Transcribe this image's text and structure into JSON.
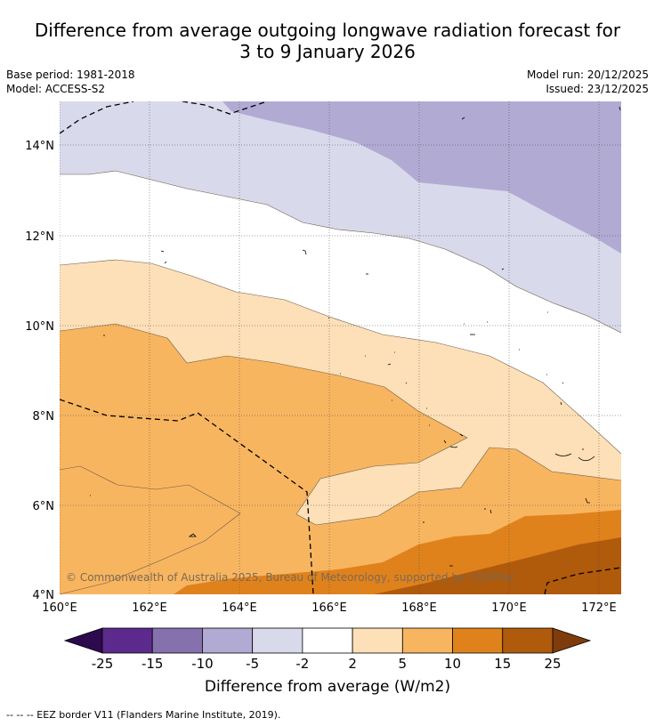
{
  "title_line1": "Difference from average outgoing longwave radiation forecast for",
  "title_line2": "3 to 9 January 2026",
  "meta_left": [
    "Base period: 1981-2018",
    "Model: ACCESS-S2"
  ],
  "meta_right": [
    "Model run: 20/12/2025",
    "Issued: 23/12/2025"
  ],
  "x_ticks": [
    "160°E",
    "162°E",
    "164°E",
    "166°E",
    "168°E",
    "170°E",
    "172°E"
  ],
  "y_ticks": [
    "14°N",
    "12°N",
    "10°N",
    "8°N",
    "6°N",
    "4°N"
  ],
  "copyright": "© Commonwealth of Australia 2025, Bureau of Meteorology, supported by COSPPac",
  "colorbar": {
    "ticks": [
      "-25",
      "-15",
      "-10",
      "-5",
      "-2",
      "2",
      "5",
      "10",
      "15",
      "25"
    ],
    "colors": [
      "#5c2a8c",
      "#8471ad",
      "#b1aad3",
      "#d8d9eb",
      "#ffffff",
      "#fde0b8",
      "#f8b560",
      "#e0821c",
      "#b05a0c"
    ],
    "under_color": "#2d0a4e",
    "over_color": "#7f3c0a",
    "label": "Difference from average (W/m2)"
  },
  "footnote": "-- -- -- EEZ border V11 (Flanders Marine Institute, 2019).",
  "map_colors": {
    "p5_to_m2": "#d8d9eb",
    "m10_to_m5": "#b1aad3",
    "plus2_5": "#fde0b8",
    "plus5_10": "#f8b560",
    "plus10_15": "#e0821c",
    "plus15_25": "#b05a0c"
  }
}
